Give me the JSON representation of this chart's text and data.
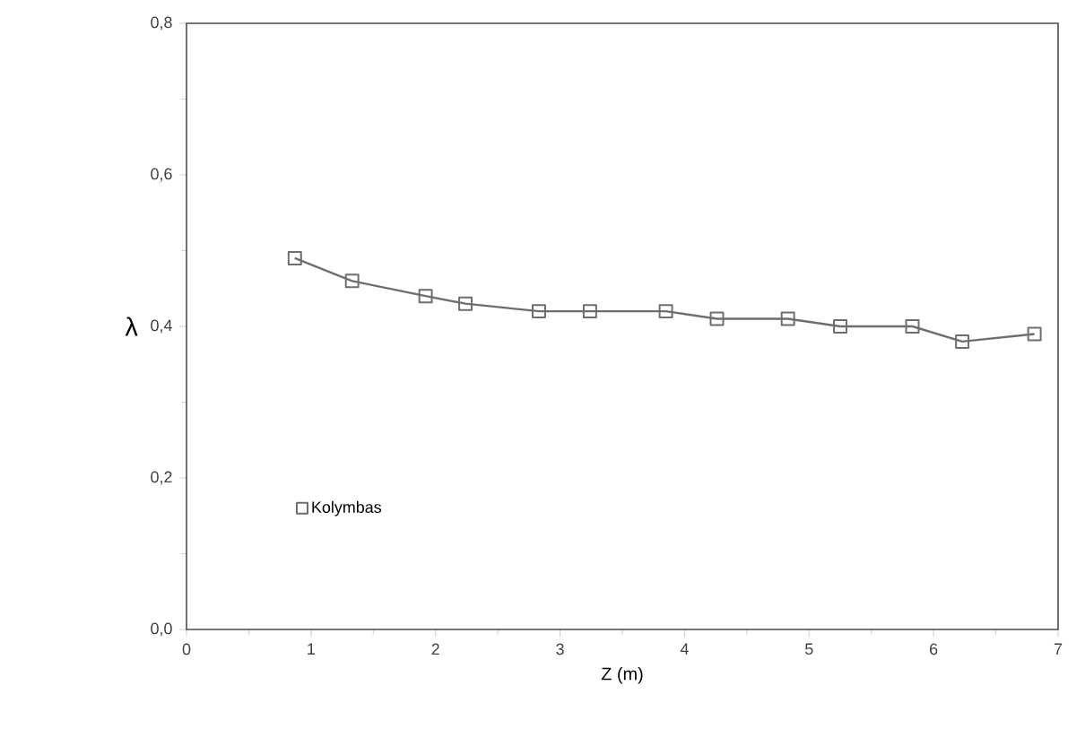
{
  "chart_data": {
    "type": "line",
    "xlabel": "Z (m)",
    "ylabel": "λ",
    "x": [
      0.87,
      1.33,
      1.92,
      2.24,
      2.83,
      3.24,
      3.85,
      4.26,
      4.83,
      5.25,
      5.83,
      6.23,
      6.81
    ],
    "series": [
      {
        "name": "Kolymbas",
        "color": "#6e6e6e",
        "values": [
          0.49,
          0.46,
          0.44,
          0.43,
          0.42,
          0.42,
          0.42,
          0.41,
          0.41,
          0.4,
          0.4,
          0.38,
          0.39
        ]
      }
    ],
    "xlim": [
      0,
      7
    ],
    "ylim": [
      0,
      0.8
    ],
    "xticks": [
      0,
      1,
      2,
      3,
      4,
      5,
      6,
      7
    ],
    "yticks": [
      {
        "value": 0,
        "label": "0,0"
      },
      {
        "value": 0.2,
        "label": "0,2"
      },
      {
        "value": 0.4,
        "label": "0,4"
      },
      {
        "value": 0.6,
        "label": "0,6"
      },
      {
        "value": 0.8,
        "label": "0,8"
      }
    ],
    "marker": "square",
    "line_style": "solid",
    "legend": "bottom left",
    "grid": false
  }
}
